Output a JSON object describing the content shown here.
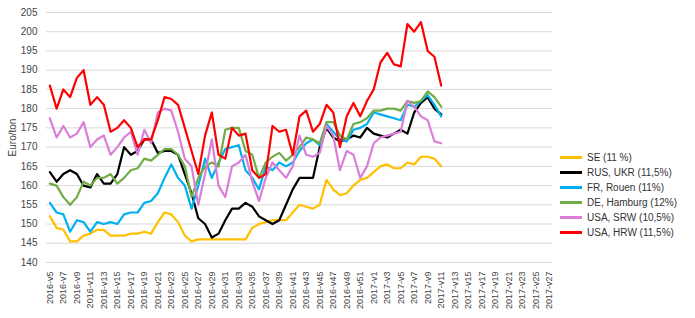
{
  "chart_data": {
    "type": "line",
    "y_label": "Euro/ton",
    "categories": [
      "2016-v5",
      null,
      "2016-v7",
      null,
      "2016-v9",
      null,
      "2016-v11",
      null,
      "2016-v13",
      null,
      "2016-v15",
      null,
      "2016-v17",
      null,
      "2016-v19",
      null,
      "2016-v21",
      null,
      "2016-v23",
      null,
      "2016-v25",
      null,
      "2016-v27",
      null,
      "2016-v29",
      null,
      "2016-v31",
      null,
      "2016-v33",
      null,
      "2016-v35",
      null,
      "2016-v37",
      null,
      "2016-v39",
      null,
      "2016-v41",
      null,
      "2016-v43",
      null,
      "2016-v45",
      null,
      "2016-v47",
      null,
      "2016-v49",
      null,
      "2016-v51",
      null,
      "2017-v1",
      null,
      "2017-v3",
      null,
      "2017-v5",
      null,
      "2017-v7",
      null,
      "2017-v9",
      null,
      "2017-v11",
      null,
      "2017-v13",
      null,
      "2017-v15",
      null,
      "2017-v17",
      null,
      "2017-v19",
      null,
      "2017-v21",
      null,
      "2017-v23",
      null,
      "2017-v25",
      null,
      "2017-v27"
    ],
    "series": [
      {
        "name": "SE (11 %)",
        "color": "#FFC000",
        "values": [
          152,
          149,
          148.5,
          145.5,
          145.5,
          147,
          147.5,
          148.5,
          148.5,
          147,
          147,
          147,
          147.5,
          147.5,
          148,
          147.5,
          150.5,
          153,
          152.5,
          150.5,
          147,
          145.5,
          146,
          146,
          146,
          146,
          146,
          146,
          146,
          146,
          149,
          150,
          150.5,
          151,
          151,
          151,
          153,
          155,
          154.5,
          154,
          155,
          161.5,
          159,
          157.5,
          158,
          160,
          161.5,
          162,
          163.5,
          165,
          165.5,
          164.5,
          164.5,
          166,
          165.5,
          167.5,
          167.5,
          167,
          165,
          null,
          null,
          null,
          null,
          null,
          null,
          null,
          null,
          null,
          null,
          null,
          null,
          null,
          null,
          null,
          null
        ]
      },
      {
        "name": "RUS, UKR (11,5%)",
        "color": "#000000",
        "values": [
          163.5,
          161,
          163,
          164,
          163,
          160,
          159.5,
          163,
          160.5,
          160.5,
          163,
          170,
          168,
          169,
          172,
          172,
          168.5,
          169,
          169,
          168,
          163,
          158,
          151.5,
          150,
          146.5,
          147.5,
          151,
          154,
          154,
          155.5,
          154.5,
          152,
          151,
          150,
          151,
          155,
          159,
          162,
          162,
          162,
          170,
          175,
          172.5,
          171.5,
          172,
          173,
          172.5,
          175,
          173.5,
          173,
          172.5,
          173.5,
          174.5,
          173.5,
          179,
          181.5,
          183,
          180,
          178.5,
          null,
          null,
          null,
          null,
          null,
          null,
          null,
          null,
          null,
          null,
          null,
          null,
          null,
          null,
          null,
          null
        ]
      },
      {
        "name": "FR, Rouen (11%)",
        "color": "#00B0F0",
        "values": [
          155.5,
          153,
          152.5,
          148,
          151,
          150.5,
          148,
          150.5,
          150,
          150.5,
          150,
          152.5,
          153,
          153,
          155.5,
          156,
          158,
          162,
          165.5,
          162,
          160,
          154,
          160,
          167,
          162,
          166,
          169.5,
          170,
          170.5,
          164,
          162,
          159,
          165,
          164,
          166,
          165,
          166,
          169,
          171,
          172,
          170.5,
          176,
          174,
          172,
          171.5,
          174.5,
          175,
          176,
          179,
          178.5,
          178,
          177.5,
          177,
          181,
          180.5,
          182,
          183.5,
          181,
          178,
          null,
          null,
          null,
          null,
          null,
          null,
          null,
          null,
          null,
          null,
          null,
          null,
          null,
          null,
          null,
          null
        ]
      },
      {
        "name": "DE, Hamburg (12%)",
        "color": "#70AD47",
        "values": [
          160.5,
          160,
          157,
          155,
          157,
          161,
          160,
          162,
          162,
          163,
          160.5,
          162,
          164,
          164.5,
          167,
          166.5,
          168,
          169.5,
          169.5,
          168,
          165,
          157,
          162,
          165,
          166,
          165,
          174.5,
          175,
          175,
          169,
          168,
          162,
          166,
          167.5,
          168.5,
          166.5,
          168,
          170,
          172.5,
          172,
          171,
          176.5,
          176.5,
          173,
          172,
          176,
          176.5,
          177.5,
          179.5,
          179.5,
          180,
          180,
          179.5,
          182,
          181.5,
          182,
          184.5,
          183,
          180.5,
          null,
          null,
          null,
          null,
          null,
          null,
          null,
          null,
          null,
          null,
          null,
          null,
          null,
          null,
          null,
          null
        ]
      },
      {
        "name": "USA, SRW (10,5%)",
        "color": "#DA7FD8",
        "values": [
          177.5,
          172.5,
          175.5,
          172.5,
          173.5,
          176.5,
          170,
          172,
          173,
          168,
          170,
          172.5,
          174,
          168,
          174.5,
          171,
          179,
          180,
          179.5,
          174,
          167,
          165,
          155,
          163,
          172,
          160,
          157,
          165,
          166,
          168,
          161,
          156,
          162,
          166,
          164,
          162,
          165,
          173,
          168,
          167.5,
          168.5,
          175.5,
          173,
          164,
          169,
          168,
          162,
          165,
          171,
          172.5,
          173,
          173.5,
          174,
          182,
          180.5,
          178,
          177,
          171.5,
          171,
          null,
          null,
          null,
          null,
          null,
          null,
          null,
          null,
          null,
          null,
          null,
          null,
          null,
          null,
          null,
          null
        ]
      },
      {
        "name": "USA, HRW (11,5%)",
        "color": "#FF0000",
        "values": [
          186,
          180,
          185,
          183,
          188,
          190,
          181,
          183,
          181,
          174,
          175,
          177,
          175,
          170,
          172,
          172,
          177,
          183,
          182.5,
          181,
          175,
          169,
          163,
          173,
          179,
          168,
          167,
          175,
          173,
          173.5,
          164,
          162,
          163,
          175.5,
          174,
          174.5,
          168,
          178,
          179.5,
          174,
          176,
          181,
          179,
          170,
          178,
          181.5,
          178,
          182,
          185,
          192,
          194.5,
          191.5,
          191,
          202,
          200,
          202.5,
          195,
          193.5,
          186,
          null,
          null,
          null,
          null,
          null,
          null,
          null,
          null,
          null,
          null,
          null,
          null,
          null,
          null,
          null,
          null
        ]
      }
    ],
    "ylim": [
      140,
      205
    ],
    "yticks": [
      140,
      145,
      150,
      155,
      160,
      165,
      170,
      175,
      180,
      185,
      190,
      195,
      200,
      205
    ],
    "grid": true,
    "legend": "right"
  }
}
